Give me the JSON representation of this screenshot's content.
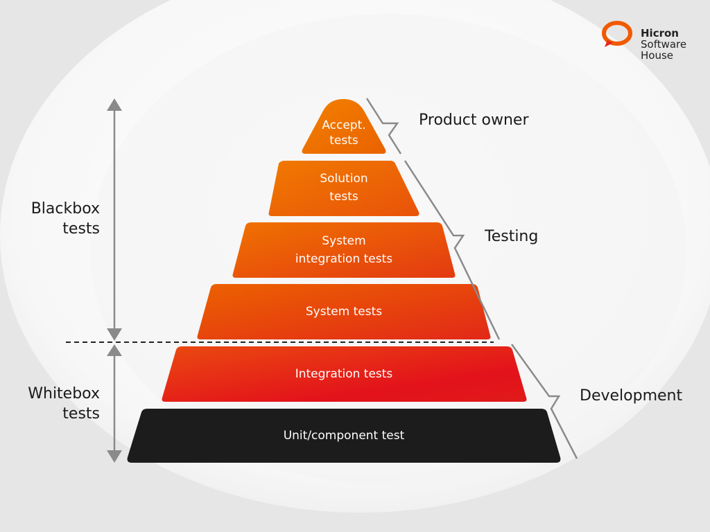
{
  "logo": {
    "line1": "Hicron",
    "line2": "Software",
    "line3": "House",
    "ring_color": "#f05a00"
  },
  "pyramid": {
    "layers": [
      {
        "line1": "Accept.",
        "line2": "tests"
      },
      {
        "line1": "Solution",
        "line2": "tests"
      },
      {
        "line1": "System",
        "line2": "integration tests"
      },
      {
        "line1": "System tests"
      },
      {
        "line1": "Integration tests"
      },
      {
        "line1": "Unit/component test"
      }
    ],
    "colors": {
      "orange": "#f07800",
      "red": "#e2141b",
      "black": "#1c1c1c"
    }
  },
  "right_labels": {
    "product_owner": "Product owner",
    "testing": "Testing",
    "development": "Development"
  },
  "left_labels": {
    "blackbox_1": "Blackbox",
    "blackbox_2": "tests",
    "whitebox_1": "Whitebox",
    "whitebox_2": "tests"
  }
}
